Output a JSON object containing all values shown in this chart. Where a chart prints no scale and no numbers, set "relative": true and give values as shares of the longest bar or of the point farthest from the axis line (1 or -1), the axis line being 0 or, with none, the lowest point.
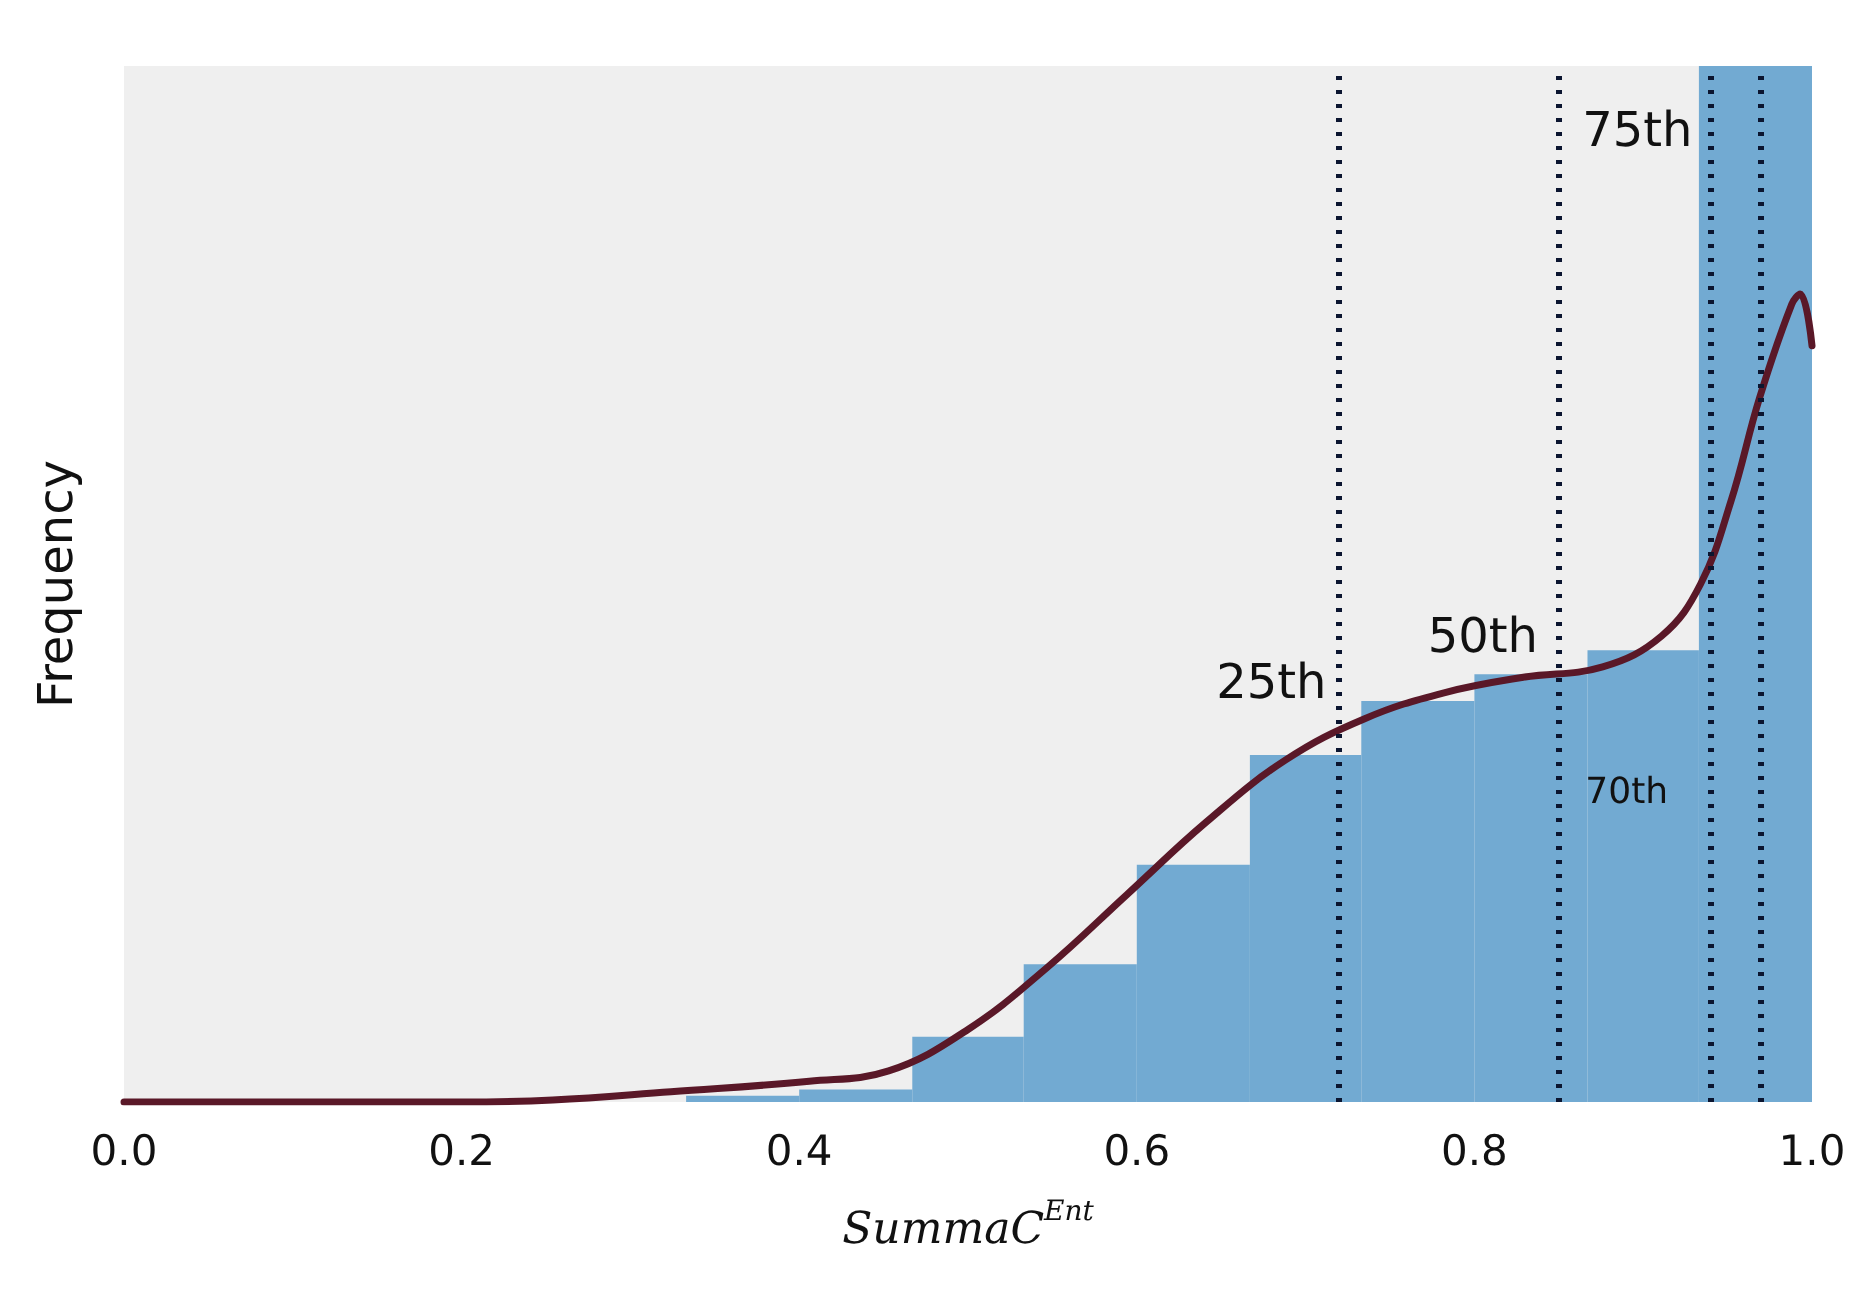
{
  "chart_data": {
    "type": "histogram",
    "relative": true,
    "xlabel": "SummaC$^{Ent}$",
    "ylabel": "Frequency",
    "xlim": [
      0,
      1
    ],
    "xticks": [
      {
        "value": 0,
        "label": "0.0"
      },
      0.2,
      0.4,
      0.6,
      0.8,
      {
        "value": 1,
        "label": "1.0"
      }
    ],
    "bins": [
      0.333,
      0.4,
      0.467,
      0.533,
      0.6,
      0.667,
      0.733,
      0.8,
      0.867,
      0.933,
      1.0
    ],
    "values": [
      0.006,
      0.012,
      0.063,
      0.133,
      0.229,
      0.335,
      0.387,
      0.413,
      0.436,
      1.0
    ],
    "color": "#72aad2",
    "series": [
      {
        "type": "line",
        "color": "#5a1828",
        "line_style": "solid",
        "marker": "none",
        "x": [
          0,
          0.1,
          0.2,
          0.254,
          0.324,
          0.406,
          0.453,
          0.5,
          0.547,
          0.594,
          0.641,
          0.688,
          0.735,
          0.782,
          0.829,
          0.876,
          0.911,
          0.934,
          0.952,
          0.969,
          0.988,
          0.993,
          1.0
        ],
        "values": [
          0,
          0,
          0,
          0.002,
          0.01,
          0.02,
          0.03,
          0.07,
          0.13,
          0.2,
          0.27,
          0.33,
          0.37,
          0.395,
          0.41,
          0.42,
          0.45,
          0.5,
          0.58,
          0.68,
          0.77,
          0.78,
          0.73
        ]
      }
    ],
    "ref_lines": [
      {
        "axis": "x",
        "value": 0.72,
        "label": "25th",
        "color": "#0b1530",
        "line_style": "dotted"
      },
      {
        "axis": "x",
        "value": 0.85,
        "label": "50th",
        "color": "#0b1530",
        "line_style": "dotted"
      },
      {
        "axis": "x",
        "value": 0.94,
        "label": "70th",
        "color": "#0b1530",
        "line_style": "dotted"
      },
      {
        "axis": "x",
        "value": 0.97,
        "label": "75th",
        "color": "#0b1530",
        "line_style": "dotted"
      }
    ],
    "grid": false
  }
}
